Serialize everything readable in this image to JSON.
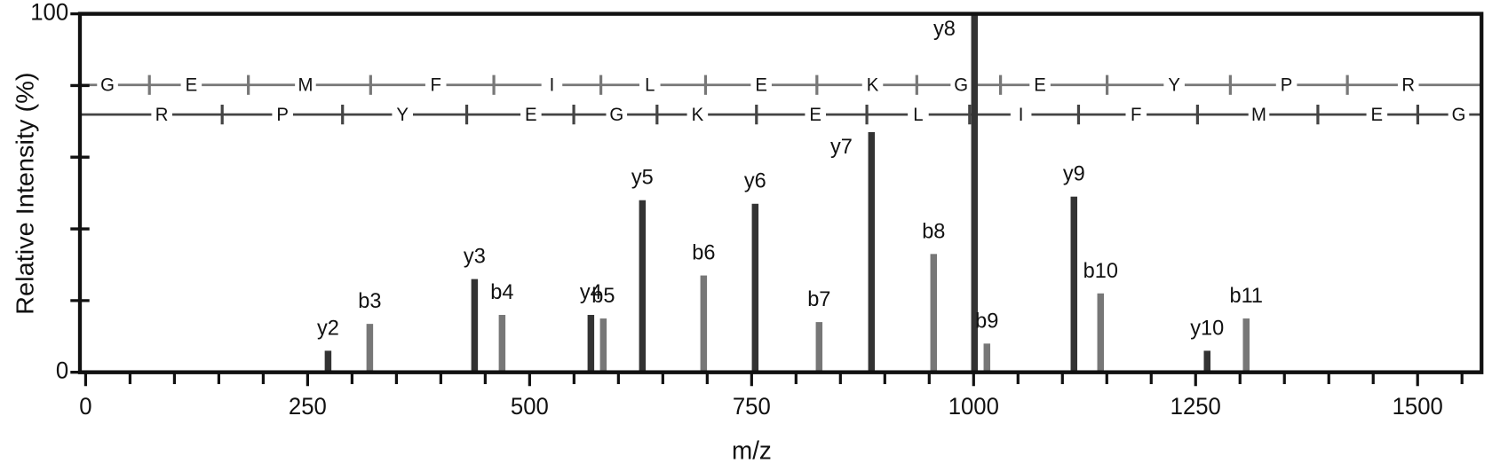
{
  "chart_data": {
    "type": "spectrum",
    "xlabel": "m/z",
    "ylabel": "Relative Intensity (%)",
    "xlim": [
      0,
      1572
    ],
    "ylim": [
      0,
      100
    ],
    "xticks": [
      0,
      250,
      500,
      750,
      1000,
      1250,
      1500
    ],
    "minor_xticks": [
      50,
      100,
      150,
      200,
      300,
      350,
      400,
      450,
      550,
      600,
      650,
      700,
      800,
      850,
      900,
      950,
      1050,
      1100,
      1150,
      1200,
      1300,
      1350,
      1400,
      1450,
      1550
    ],
    "yticks": [
      0,
      100
    ],
    "minor_yticks": [
      20,
      40,
      60,
      80
    ],
    "series": [
      {
        "color": "#333333",
        "labels": [
          "y2",
          "y3",
          "y4",
          "y5",
          "y6",
          "y7",
          "y8",
          "y9",
          "y10"
        ],
        "x": [
          273,
          438,
          569,
          627,
          754,
          885,
          1001,
          1113,
          1263
        ],
        "values": [
          6,
          26,
          16,
          48,
          47,
          67,
          100,
          49,
          6
        ]
      },
      {
        "color": "#777777",
        "labels": [
          "b3",
          "b4",
          "b5",
          "b6",
          "b7",
          "b8",
          "b9",
          "b10",
          "b11"
        ],
        "x": [
          320,
          469,
          583,
          696,
          826,
          955,
          1015,
          1143,
          1307
        ],
        "values": [
          13.5,
          16,
          15,
          27,
          14,
          33,
          8,
          22,
          15
        ]
      }
    ],
    "sequence_top": [
      "G",
      "E",
      "M",
      "F",
      "I",
      "L",
      "E",
      "K",
      "G",
      "E",
      "Y",
      "P",
      "R"
    ],
    "sequence_bottom": [
      "R",
      "P",
      "Y",
      "E",
      "G",
      "K",
      "E",
      "L",
      "I",
      "F",
      "M",
      "E",
      "G"
    ]
  }
}
